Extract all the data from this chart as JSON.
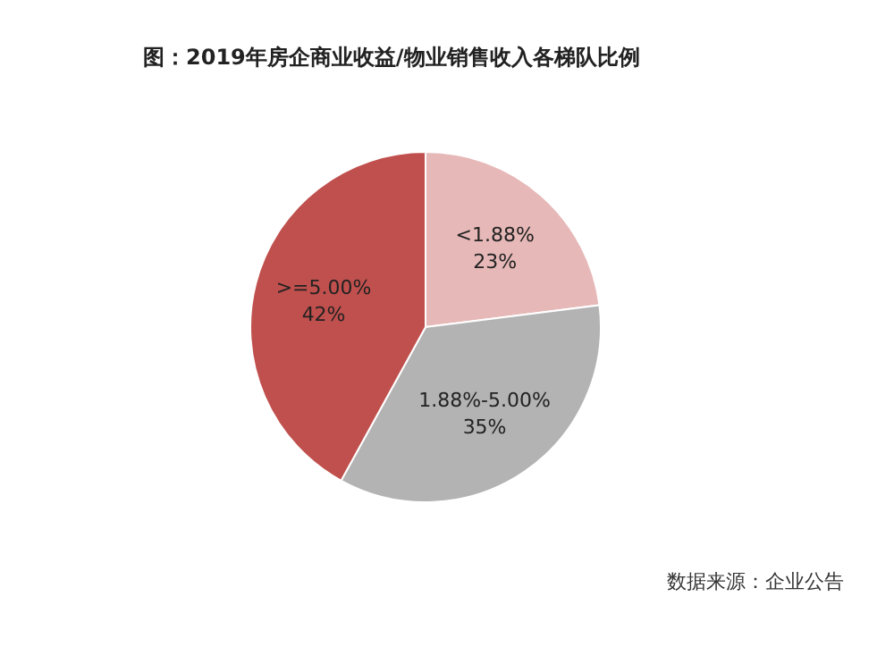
{
  "chart_data": {
    "type": "pie",
    "title": "图：2019年房企商业收益/物业销售收入各梯队比例",
    "categories": [
      "<1.88%",
      "1.88%-5.00%",
      ">=5.00%"
    ],
    "values": [
      23,
      35,
      42
    ],
    "value_labels": [
      "23%",
      "35%",
      "42%"
    ],
    "colors": [
      "#e6b8b7",
      "#b3b3b3",
      "#c0504d"
    ],
    "annotations": [
      "数据来源：企业公告"
    ]
  }
}
